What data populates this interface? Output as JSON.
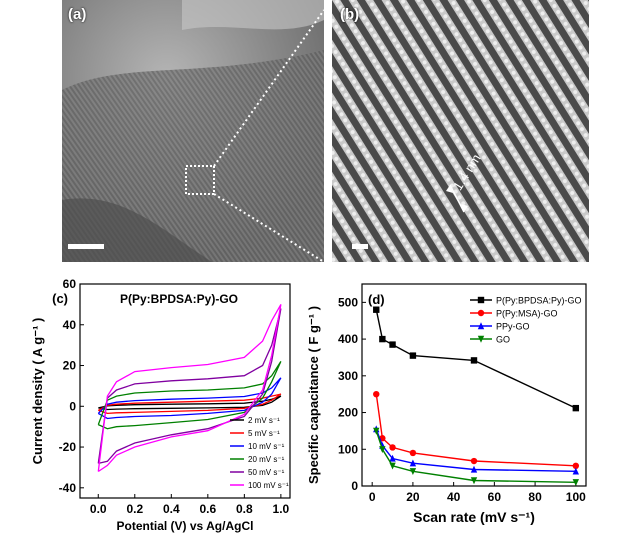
{
  "panels": {
    "a": {
      "label": "(a)"
    },
    "b": {
      "label": "(b)",
      "spacing_label": "1.4 nm"
    }
  },
  "chart_data": [
    {
      "panel": "(c)",
      "type": "line",
      "title": "P(Py:BPDSA:Py)-GO",
      "xlabel": "Potential (V) vs Ag/AgCl",
      "ylabel": "Current density ( A g⁻¹ )",
      "xlim": [
        -0.1,
        1.05
      ],
      "ylim": [
        -45,
        60
      ],
      "xticks": [
        "0.0",
        "0.2",
        "0.4",
        "0.6",
        "0.8",
        "1.0"
      ],
      "yticks": [
        "-40",
        "-20",
        "0",
        "20",
        "40",
        "60"
      ],
      "legend_position": "bottom-right",
      "series": [
        {
          "name": "2 mV s⁻¹",
          "color": "#000000",
          "anodic": [
            [
              0.0,
              -0.8
            ],
            [
              0.05,
              0.2
            ],
            [
              0.1,
              0.5
            ],
            [
              0.2,
              0.8
            ],
            [
              0.4,
              1.0
            ],
            [
              0.6,
              1.2
            ],
            [
              0.8,
              1.5
            ],
            [
              0.9,
              2.5
            ],
            [
              0.95,
              3.5
            ],
            [
              1.0,
              5.0
            ]
          ],
          "cathodic": [
            [
              1.0,
              5.0
            ],
            [
              0.95,
              2.0
            ],
            [
              0.9,
              0.5
            ],
            [
              0.8,
              -0.5
            ],
            [
              0.6,
              -0.8
            ],
            [
              0.4,
              -1.0
            ],
            [
              0.2,
              -1.2
            ],
            [
              0.1,
              -1.4
            ],
            [
              0.05,
              -1.6
            ],
            [
              0.0,
              -0.8
            ]
          ]
        },
        {
          "name": "5 mV s⁻¹",
          "color": "#ff0000",
          "anodic": [
            [
              0.0,
              -2.0
            ],
            [
              0.05,
              0.5
            ],
            [
              0.1,
              1.0
            ],
            [
              0.2,
              1.5
            ],
            [
              0.4,
              2.0
            ],
            [
              0.6,
              2.5
            ],
            [
              0.8,
              3.0
            ],
            [
              0.9,
              4.0
            ],
            [
              0.95,
              5.0
            ],
            [
              1.0,
              6.0
            ]
          ],
          "cathodic": [
            [
              1.0,
              6.0
            ],
            [
              0.95,
              3.0
            ],
            [
              0.9,
              1.0
            ],
            [
              0.8,
              -1.0
            ],
            [
              0.6,
              -2.0
            ],
            [
              0.4,
              -2.5
            ],
            [
              0.2,
              -3.0
            ],
            [
              0.1,
              -3.2
            ],
            [
              0.05,
              -3.5
            ],
            [
              0.0,
              -2.0
            ]
          ]
        },
        {
          "name": "10 mV s⁻¹",
          "color": "#0000ff",
          "anodic": [
            [
              0.0,
              -3.5
            ],
            [
              0.05,
              1.0
            ],
            [
              0.1,
              2.0
            ],
            [
              0.2,
              2.8
            ],
            [
              0.4,
              3.5
            ],
            [
              0.6,
              4.0
            ],
            [
              0.8,
              4.8
            ],
            [
              0.9,
              6.5
            ],
            [
              0.95,
              9.0
            ],
            [
              1.0,
              14.0
            ]
          ],
          "cathodic": [
            [
              1.0,
              14.0
            ],
            [
              0.95,
              6.0
            ],
            [
              0.9,
              2.0
            ],
            [
              0.8,
              -2.0
            ],
            [
              0.6,
              -3.5
            ],
            [
              0.4,
              -4.5
            ],
            [
              0.2,
              -5.0
            ],
            [
              0.1,
              -5.5
            ],
            [
              0.05,
              -6.0
            ],
            [
              0.0,
              -3.5
            ]
          ]
        },
        {
          "name": "20 mV s⁻¹",
          "color": "#008000",
          "anodic": [
            [
              0.0,
              -9.0
            ],
            [
              0.05,
              3.0
            ],
            [
              0.1,
              5.0
            ],
            [
              0.2,
              6.5
            ],
            [
              0.4,
              7.5
            ],
            [
              0.6,
              8.0
            ],
            [
              0.8,
              9.0
            ],
            [
              0.9,
              11.0
            ],
            [
              0.95,
              15.0
            ],
            [
              1.0,
              22.0
            ]
          ],
          "cathodic": [
            [
              1.0,
              22.0
            ],
            [
              0.95,
              12.0
            ],
            [
              0.9,
              4.0
            ],
            [
              0.8,
              -3.0
            ],
            [
              0.6,
              -6.5
            ],
            [
              0.4,
              -8.0
            ],
            [
              0.2,
              -9.5
            ],
            [
              0.1,
              -10.0
            ],
            [
              0.05,
              -11.0
            ],
            [
              0.0,
              -9.0
            ]
          ]
        },
        {
          "name": "50 mV s⁻¹",
          "color": "#8000a0",
          "anodic": [
            [
              0.0,
              -28.0
            ],
            [
              0.05,
              4.0
            ],
            [
              0.1,
              8.0
            ],
            [
              0.2,
              11.0
            ],
            [
              0.4,
              12.5
            ],
            [
              0.6,
              13.5
            ],
            [
              0.8,
              15.0
            ],
            [
              0.9,
              20.0
            ],
            [
              0.95,
              30.0
            ],
            [
              1.0,
              48.0
            ]
          ],
          "cathodic": [
            [
              1.0,
              48.0
            ],
            [
              0.95,
              22.0
            ],
            [
              0.9,
              6.0
            ],
            [
              0.8,
              -5.0
            ],
            [
              0.6,
              -11.0
            ],
            [
              0.4,
              -14.0
            ],
            [
              0.2,
              -18.0
            ],
            [
              0.1,
              -22.0
            ],
            [
              0.05,
              -27.0
            ],
            [
              0.0,
              -28.0
            ]
          ]
        },
        {
          "name": "100 mV s⁻¹",
          "color": "#ff00ff",
          "anodic": [
            [
              0.0,
              -32.0
            ],
            [
              0.05,
              5.0
            ],
            [
              0.1,
              12.0
            ],
            [
              0.2,
              17.0
            ],
            [
              0.4,
              19.0
            ],
            [
              0.6,
              20.5
            ],
            [
              0.8,
              24.0
            ],
            [
              0.9,
              32.0
            ],
            [
              0.95,
              42.0
            ],
            [
              1.0,
              50.0
            ]
          ],
          "cathodic": [
            [
              1.0,
              50.0
            ],
            [
              0.95,
              25.0
            ],
            [
              0.9,
              8.0
            ],
            [
              0.8,
              -4.0
            ],
            [
              0.6,
              -12.0
            ],
            [
              0.4,
              -15.0
            ],
            [
              0.2,
              -20.0
            ],
            [
              0.1,
              -24.0
            ],
            [
              0.05,
              -29.0
            ],
            [
              0.0,
              -32.0
            ]
          ]
        }
      ]
    },
    {
      "panel": "(d)",
      "type": "line",
      "xlabel": "Scan rate (mV s⁻¹)",
      "ylabel": "Specific capacitance ( F g⁻¹ )",
      "xlim": [
        -5,
        105
      ],
      "ylim": [
        0,
        550
      ],
      "xticks": [
        0,
        20,
        40,
        60,
        80,
        100
      ],
      "yticks": [
        0,
        100,
        200,
        300,
        400,
        500
      ],
      "legend_position": "top-right",
      "x": [
        2,
        5,
        10,
        20,
        50,
        100
      ],
      "series": [
        {
          "name": "P(Py:BPDSA:Py)-GO",
          "color": "#000000",
          "marker": "square",
          "values": [
            480,
            400,
            385,
            355,
            342,
            212
          ]
        },
        {
          "name": "P(Py:MSA)-GO",
          "color": "#ff0000",
          "marker": "circle",
          "values": [
            250,
            130,
            105,
            90,
            68,
            55
          ]
        },
        {
          "name": "PPy-GO",
          "color": "#0000ff",
          "marker": "triangle-up",
          "values": [
            155,
            110,
            75,
            62,
            45,
            40
          ]
        },
        {
          "name": "GO",
          "color": "#008000",
          "marker": "triangle-down",
          "values": [
            150,
            100,
            55,
            40,
            15,
            10
          ]
        }
      ]
    }
  ]
}
